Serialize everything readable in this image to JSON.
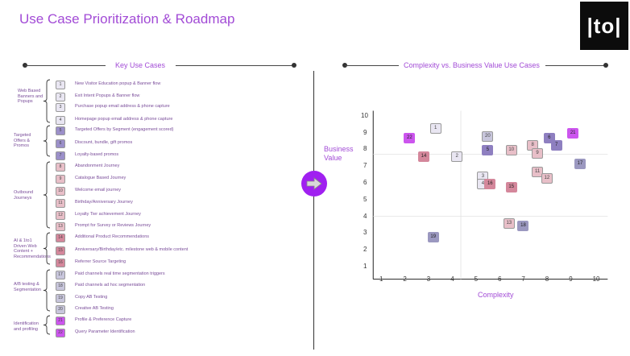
{
  "page": {
    "title": "Use Case Prioritization & Roadmap",
    "logo_text": "|to|"
  },
  "left_section": {
    "title": "Key Use Cases"
  },
  "right_section": {
    "title": "Complexity vs. Business Value Use Cases"
  },
  "groups": [
    {
      "label": "Web Based Banners and Popups",
      "items": [
        {
          "num": "1",
          "text": "New Visitor Education popup & Banner flow",
          "color": "#e9e6f2"
        },
        {
          "num": "2",
          "text": "Exit Intent Popups & Banner flow",
          "color": "#e9e6f2"
        },
        {
          "num": "3",
          "text": "Purchase popup email address & phone capture",
          "color": "#e9e6f2"
        },
        {
          "num": "4",
          "text": "Homepage popup email address & phone capture",
          "color": "#e9e6f2"
        }
      ]
    },
    {
      "label": "Targeted Offers & Promos",
      "items": [
        {
          "num": "5",
          "text": "Targeted Offers by Segment (engagement scored)",
          "color": "#9b8fc9"
        },
        {
          "num": "6",
          "text": "Discount, bundle, gift promos",
          "color": "#9b8fc9"
        },
        {
          "num": "7",
          "text": "Loyalty-based promos",
          "color": "#9b8fc9"
        }
      ]
    },
    {
      "label": "Outbound Journeys",
      "items": [
        {
          "num": "8",
          "text": "Abandonment Journey",
          "color": "#e8bfc8"
        },
        {
          "num": "9",
          "text": "Catalogue Based Journey",
          "color": "#e8bfc8"
        },
        {
          "num": "10",
          "text": "Welcome email journey",
          "color": "#e8bfc8"
        },
        {
          "num": "11",
          "text": "Birthday/Anniversary Journey",
          "color": "#e8bfc8"
        },
        {
          "num": "12",
          "text": "Loyalty Tier achievement Journey",
          "color": "#e8bfc8"
        },
        {
          "num": "13",
          "text": "Prompt for Survey or Reviews Journey",
          "color": "#e8bfc8"
        }
      ]
    },
    {
      "label": "AI & 1to1 Driven Web Content + Recommendations",
      "items": [
        {
          "num": "14",
          "text": "Additional Product Recommendations",
          "color": "#d4879b"
        },
        {
          "num": "15",
          "text": "Anniversary/Birthday/etc. milestone web & mobile content",
          "color": "#d4879b"
        },
        {
          "num": "16",
          "text": "Referrer Source Targeting",
          "color": "#d4879b"
        }
      ]
    },
    {
      "label": "A/B testing & Segmentation",
      "items": [
        {
          "num": "17",
          "text": "Paid channels real time segmentation triggers",
          "color": "#c8c6dc"
        },
        {
          "num": "18",
          "text": "Paid channels ad hoc segmentation",
          "color": "#c8c6dc"
        },
        {
          "num": "19",
          "text": "Copy AB Testing",
          "color": "#c8c6dc"
        },
        {
          "num": "20",
          "text": "Creative AB Testing",
          "color": "#c8c6dc"
        }
      ]
    },
    {
      "label": "Identification and profiling",
      "items": [
        {
          "num": "21",
          "text": "Profile & Preference Capture",
          "color": "#cc55ee"
        },
        {
          "num": "22",
          "text": "Query Parameter Identification",
          "color": "#cc55ee"
        }
      ]
    }
  ],
  "chart_data": {
    "type": "scatter",
    "title": "Complexity vs. Business Value Use Cases",
    "xlabel": "Complexity",
    "ylabel": "Business Value",
    "xlim": [
      0.5,
      10.5
    ],
    "ylim": [
      0.5,
      10.5
    ],
    "x_ticks": [
      1,
      2,
      3,
      4,
      5,
      6,
      7,
      8,
      9,
      10
    ],
    "y_ticks": [
      1,
      2,
      3,
      4,
      5,
      6,
      7,
      8,
      9,
      10
    ],
    "points": [
      {
        "label": "1",
        "x": 3.2,
        "y": 9.3,
        "color": "#e9e6f2"
      },
      {
        "label": "2",
        "x": 4.1,
        "y": 7.6,
        "color": "#e9e6f2"
      },
      {
        "label": "3",
        "x": 5.2,
        "y": 6.4,
        "color": "#e9e6f2"
      },
      {
        "label": "4",
        "x": 5.2,
        "y": 6.0,
        "color": "#e9e6f2"
      },
      {
        "label": "5",
        "x": 5.4,
        "y": 8.0,
        "color": "#8e7fc0"
      },
      {
        "label": "6",
        "x": 8.0,
        "y": 8.7,
        "color": "#8e7fc0"
      },
      {
        "label": "7",
        "x": 8.3,
        "y": 8.3,
        "color": "#8e7fc0"
      },
      {
        "label": "8",
        "x": 7.3,
        "y": 8.3,
        "color": "#e8bfc8"
      },
      {
        "label": "9",
        "x": 7.5,
        "y": 7.8,
        "color": "#e8bfc8"
      },
      {
        "label": "10",
        "x": 6.4,
        "y": 8.0,
        "color": "#e8bfc8"
      },
      {
        "label": "11",
        "x": 7.5,
        "y": 6.7,
        "color": "#e8bfc8"
      },
      {
        "label": "12",
        "x": 7.9,
        "y": 6.3,
        "color": "#e8bfc8"
      },
      {
        "label": "13",
        "x": 6.3,
        "y": 3.6,
        "color": "#e8bfc8"
      },
      {
        "label": "14",
        "x": 2.7,
        "y": 7.6,
        "color": "#d4879b"
      },
      {
        "label": "15",
        "x": 6.4,
        "y": 5.8,
        "color": "#d4879b"
      },
      {
        "label": "16",
        "x": 5.5,
        "y": 6.0,
        "color": "#d4879b"
      },
      {
        "label": "17",
        "x": 9.3,
        "y": 7.2,
        "color": "#9b98c0"
      },
      {
        "label": "18",
        "x": 6.9,
        "y": 3.5,
        "color": "#9b98c0"
      },
      {
        "label": "19",
        "x": 3.1,
        "y": 2.8,
        "color": "#9b98c0"
      },
      {
        "label": "20",
        "x": 5.4,
        "y": 8.8,
        "color": "#c8c6dc"
      },
      {
        "label": "21",
        "x": 9.0,
        "y": 9.0,
        "color": "#cc55ee"
      },
      {
        "label": "22",
        "x": 2.1,
        "y": 8.7,
        "color": "#cc55ee"
      }
    ]
  }
}
